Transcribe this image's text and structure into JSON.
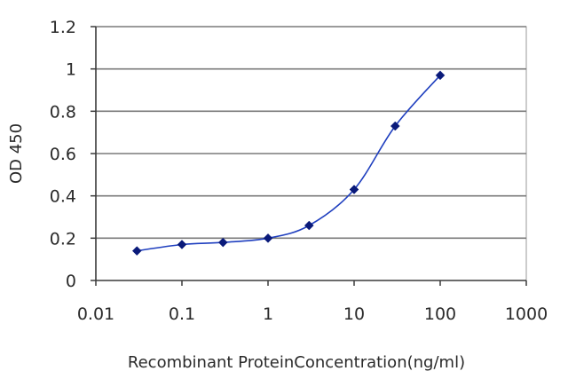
{
  "chart_data": {
    "type": "line",
    "xscale": "log",
    "xlabel": "Recombinant ProteinConcentration(ng/ml)",
    "ylabel": "OD 450",
    "xlim": [
      0.01,
      1000
    ],
    "ylim": [
      0,
      1.2
    ],
    "x_ticks": [
      0.01,
      0.1,
      1,
      10,
      100,
      1000
    ],
    "x_tick_labels": [
      "0.01",
      "0.1",
      "1",
      "10",
      "100",
      "1000"
    ],
    "y_ticks": [
      0,
      0.2,
      0.4,
      0.6,
      0.8,
      1,
      1.2
    ],
    "y_tick_labels": [
      "0",
      "0.2",
      "0.4",
      "0.6",
      "0.8",
      "1",
      "1.2"
    ],
    "grid": "horizontal",
    "legend": "none",
    "series": [
      {
        "x": [
          0.03,
          0.1,
          0.3,
          1,
          3,
          10,
          30,
          100
        ],
        "y": [
          0.14,
          0.17,
          0.18,
          0.2,
          0.26,
          0.43,
          0.73,
          0.97
        ],
        "color": "#1f3fbf",
        "marker_color": "#0a1a7a"
      }
    ]
  }
}
